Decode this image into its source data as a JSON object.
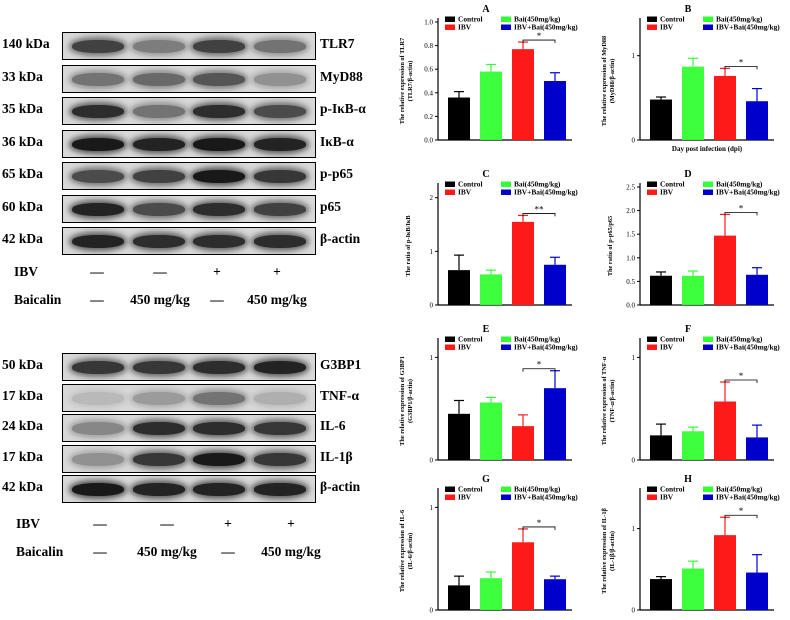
{
  "blot_top": {
    "rows": [
      {
        "kda": "140 kDa",
        "protein": "TLR7",
        "intensity": [
          0.75,
          0.45,
          0.75,
          0.5
        ]
      },
      {
        "kda": "33 kDa",
        "protein": "MyD88",
        "intensity": [
          0.5,
          0.55,
          0.65,
          0.35
        ]
      },
      {
        "kda": "35 kDa",
        "protein": "p-IκB-α",
        "intensity": [
          0.85,
          0.5,
          0.85,
          0.7
        ]
      },
      {
        "kda": "36 kDa",
        "protein": "IκB-α",
        "intensity": [
          0.95,
          0.9,
          0.95,
          0.9
        ]
      },
      {
        "kda": "65 kDa",
        "protein": "p-p65",
        "intensity": [
          0.7,
          0.75,
          0.95,
          0.8
        ]
      },
      {
        "kda": "60 kDa",
        "protein": "p65",
        "intensity": [
          0.9,
          0.7,
          0.85,
          0.75
        ]
      },
      {
        "kda": "42 kDa",
        "protein": "β-actin",
        "intensity": [
          0.9,
          0.85,
          0.85,
          0.85
        ]
      }
    ],
    "ibv_label": "IBV",
    "ibv_values": [
      "—",
      "—",
      "+",
      "+"
    ],
    "baicalin_label": "Baicalin",
    "baicalin_values": [
      "—",
      "450 mg/kg",
      "—",
      "450 mg/kg"
    ]
  },
  "blot_bottom": {
    "rows": [
      {
        "kda": "50 kDa",
        "protein": "G3BP1",
        "intensity": [
          0.8,
          0.8,
          0.85,
          0.9
        ]
      },
      {
        "kda": "17 kDa",
        "protein": "TNF-α",
        "intensity": [
          0.15,
          0.3,
          0.5,
          0.2
        ]
      },
      {
        "kda": "24 kDa",
        "protein": "IL-6",
        "intensity": [
          0.4,
          0.85,
          0.85,
          0.8
        ]
      },
      {
        "kda": "17 kDa",
        "protein": "IL-1β",
        "intensity": [
          0.35,
          0.8,
          0.95,
          0.8
        ]
      },
      {
        "kda": "42 kDa",
        "protein": "β-actin",
        "intensity": [
          0.95,
          0.9,
          0.9,
          0.9
        ]
      }
    ],
    "ibv_label": "IBV",
    "ibv_values": [
      "—",
      "—",
      "+",
      "+"
    ],
    "baicalin_label": "Baicalin",
    "baicalin_values": [
      "—",
      "450 mg/kg",
      "—",
      "450 mg/kg"
    ]
  },
  "colors": {
    "Control": "#000000",
    "IBV": "#ff1a1a",
    "Bai": "#33ff33",
    "IBV_Bai": "#0000cc"
  },
  "chart_data": [
    {
      "panel": "A",
      "type": "bar",
      "categories": [
        "Control",
        "Bai(450mg/kg)",
        "IBV",
        "IBV+Bai(450mg/kg)"
      ],
      "values": [
        0.36,
        0.58,
        0.77,
        0.5
      ],
      "errors": [
        0.05,
        0.06,
        0.06,
        0.07
      ],
      "ylim": [
        0,
        1.0
      ],
      "yticks": [
        0.0,
        0.2,
        0.4,
        0.6,
        0.8,
        1.0
      ],
      "ytick_labels": [
        "0.0",
        "0.2",
        "0.4",
        "0.6",
        "0.8",
        "1.0"
      ],
      "ylabel": [
        "The relative expression of TLR7",
        "(TLR7/β-actin)"
      ],
      "xlabel": "",
      "sig": "*"
    },
    {
      "panel": "B",
      "type": "bar",
      "categories": [
        "Control",
        "Bai(450mg/kg)",
        "IBV",
        "IBV+Bai(450mg/kg)"
      ],
      "values": [
        0.48,
        0.87,
        0.76,
        0.46
      ],
      "errors": [
        0.03,
        0.1,
        0.09,
        0.15
      ],
      "ylim": [
        0,
        1.4
      ],
      "yticks": [
        0,
        1
      ],
      "ytick_labels": [
        "0",
        "1"
      ],
      "ylabel": [
        "The relative expression of MyD88",
        "(MyD88/β-actin)"
      ],
      "xlabel": "Day post infection (dpi)",
      "sig": "*"
    },
    {
      "panel": "C",
      "type": "bar",
      "categories": [
        "Control",
        "Bai(450mg/kg)",
        "IBV",
        "IBV+Bai(450mg/kg)"
      ],
      "values": [
        0.65,
        0.57,
        1.55,
        0.75
      ],
      "errors": [
        0.28,
        0.08,
        0.12,
        0.14
      ],
      "ylim": [
        0,
        2.2
      ],
      "yticks": [
        0,
        1,
        2
      ],
      "ytick_labels": [
        "0",
        "1",
        "2"
      ],
      "ylabel": [
        "The ratio of p-IκB/IκB"
      ],
      "xlabel": "",
      "sig": "**"
    },
    {
      "panel": "D",
      "type": "bar",
      "categories": [
        "Control",
        "Bai(450mg/kg)",
        "IBV",
        "IBV+Bai(450mg/kg)"
      ],
      "values": [
        0.62,
        0.62,
        1.47,
        0.64
      ],
      "errors": [
        0.08,
        0.1,
        0.45,
        0.15
      ],
      "ylim": [
        0,
        2.5
      ],
      "yticks": [
        0.0,
        0.5,
        1.0,
        1.5,
        2.0,
        2.5
      ],
      "ytick_labels": [
        "0.0",
        "0.5",
        "1.0",
        "1.5",
        "2.0",
        "2.5"
      ],
      "ylabel": [
        "The ratio of p-p65/p65"
      ],
      "xlabel": "",
      "sig": "*"
    },
    {
      "panel": "E",
      "type": "bar",
      "categories": [
        "Control",
        "Bai(450mg/kg)",
        "IBV",
        "IBV+Bai(450mg/kg)"
      ],
      "values": [
        0.45,
        0.56,
        0.33,
        0.7
      ],
      "errors": [
        0.13,
        0.05,
        0.11,
        0.17
      ],
      "ylim": [
        0,
        1.15
      ],
      "yticks": [
        0,
        1
      ],
      "ytick_labels": [
        "0",
        "1"
      ],
      "ylabel": [
        "The relative expression of G3BP1",
        "(G3BP1/β-actin)"
      ],
      "xlabel": "",
      "sig": "*"
    },
    {
      "panel": "F",
      "type": "bar",
      "categories": [
        "Control",
        "Bai(450mg/kg)",
        "IBV",
        "IBV+Bai(450mg/kg)"
      ],
      "values": [
        0.24,
        0.28,
        0.57,
        0.22
      ],
      "errors": [
        0.11,
        0.04,
        0.19,
        0.12
      ],
      "ylim": [
        0,
        1.15
      ],
      "yticks": [
        0,
        1
      ],
      "ytick_labels": [
        "0",
        "1"
      ],
      "ylabel": [
        "The relative expression of TNF-α",
        "(TNF-α/β-actin)"
      ],
      "xlabel": "",
      "sig": "*"
    },
    {
      "panel": "G",
      "type": "bar",
      "categories": [
        "Control",
        "Bai(450mg/kg)",
        "IBV",
        "IBV+Bai(450mg/kg)"
      ],
      "values": [
        0.24,
        0.31,
        0.66,
        0.3
      ],
      "errors": [
        0.09,
        0.06,
        0.13,
        0.03
      ],
      "ylim": [
        0,
        1.15
      ],
      "yticks": [
        0,
        1
      ],
      "ytick_labels": [
        "0",
        "1"
      ],
      "ylabel": [
        "The relative expression of IL-6",
        "(IL-6/β-actin)"
      ],
      "xlabel": "",
      "sig": "*"
    },
    {
      "panel": "H",
      "type": "bar",
      "categories": [
        "Control",
        "Bai(450mg/kg)",
        "IBV",
        "IBV+Bai(450mg/kg)"
      ],
      "values": [
        0.38,
        0.51,
        0.92,
        0.46
      ],
      "errors": [
        0.03,
        0.09,
        0.22,
        0.22
      ],
      "ylim": [
        0,
        1.45
      ],
      "yticks": [
        0,
        1
      ],
      "ytick_labels": [
        "0",
        "1"
      ],
      "ylabel": [
        "The relative expression of IL-1β",
        "(IL-1β/β-actin)"
      ],
      "xlabel": "",
      "sig": "*"
    }
  ],
  "legend": {
    "entries": [
      {
        "label": "Control",
        "color_key": "Control"
      },
      {
        "label": "Bai(450mg/kg)",
        "color_key": "Bai"
      },
      {
        "label": "IBV",
        "color_key": "IBV"
      },
      {
        "label": "IBV+Bai(450mg/kg)",
        "color_key": "IBV_Bai"
      }
    ]
  }
}
